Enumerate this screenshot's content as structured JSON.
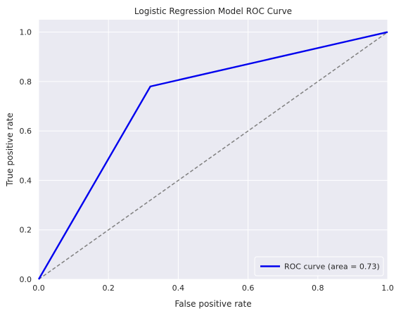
{
  "chart_data": {
    "type": "line",
    "title": "Logistic Regression Model ROC Curve",
    "xlabel": "False positive rate",
    "ylabel": "True positive rate",
    "xlim": [
      0.0,
      1.0
    ],
    "ylim": [
      0.0,
      1.05
    ],
    "x_ticks": [
      "0.0",
      "0.2",
      "0.4",
      "0.6",
      "0.8",
      "1.0"
    ],
    "y_ticks": [
      "0.0",
      "0.2",
      "0.4",
      "0.6",
      "0.8",
      "1.0"
    ],
    "grid": true,
    "legend_position": "lower-right",
    "series": [
      {
        "name": "ROC curve (area =  0.73)",
        "color": "#0000ee",
        "style": "solid",
        "x": [
          0.0,
          0.32,
          1.0
        ],
        "y": [
          0.0,
          0.78,
          1.0
        ]
      },
      {
        "color": "#808080",
        "style": "dashed",
        "x": [
          0.0,
          1.0
        ],
        "y": [
          0.0,
          1.0
        ]
      }
    ]
  },
  "colors": {
    "plot_background": "#eaeaf2",
    "grid": "#ffffff",
    "text": "#262626"
  }
}
